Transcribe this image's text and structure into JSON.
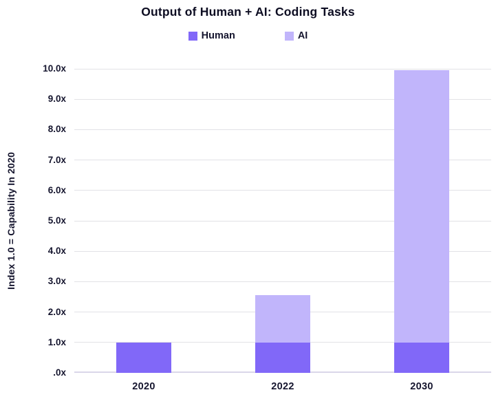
{
  "chart_data": {
    "type": "bar",
    "stacked": true,
    "title": "Output of Human + AI: Coding Tasks",
    "categories": [
      "2020",
      "2022",
      "2030"
    ],
    "series": [
      {
        "name": "Human",
        "color": "#8168f8",
        "values": [
          1.0,
          1.0,
          1.0
        ]
      },
      {
        "name": "AI",
        "color": "#c1b5fb",
        "values": [
          0,
          1.55,
          8.95
        ]
      }
    ],
    "totals": [
      1.0,
      2.55,
      9.95
    ],
    "ylabel": "Index 1.0 = Capability In 2020",
    "xlabel": "",
    "ylim": [
      0,
      10
    ],
    "ytick_step": 1,
    "ytick_labels": [
      ".0x",
      "1.0x",
      "2.0x",
      "3.0x",
      "4.0x",
      "5.0x",
      "6.0x",
      "7.0x",
      "8.0x",
      "9.0x",
      "10.0x"
    ],
    "grid": true,
    "legend_position": "top"
  },
  "colors": {
    "human": "#8168f8",
    "ai": "#c1b5fb",
    "gridline": "#e2e2e6",
    "baseline": "#d9d6e9",
    "text": "#15152e"
  }
}
